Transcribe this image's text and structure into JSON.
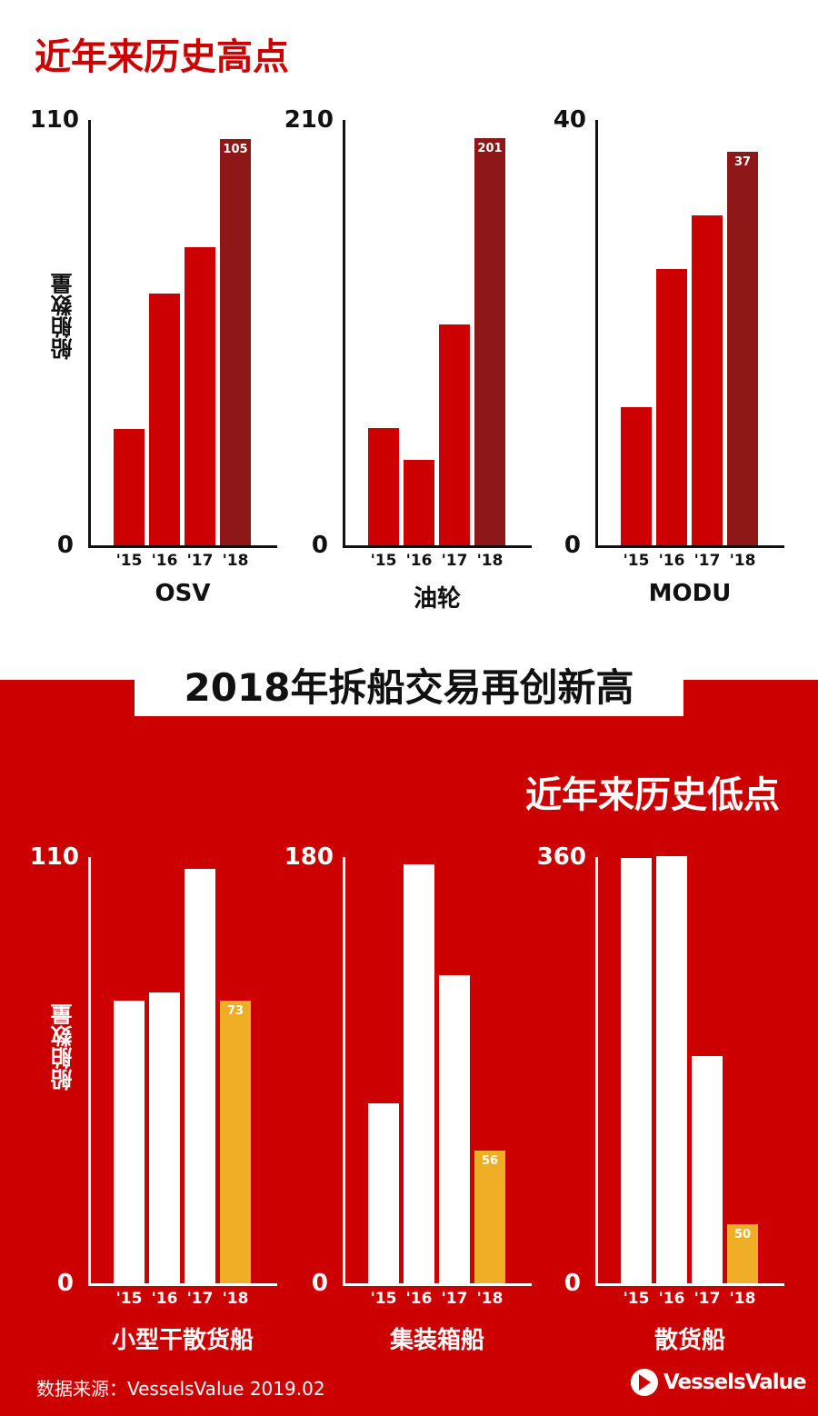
{
  "top_title": "近年来历史高点",
  "mid_title": "2018年拆船交易再创新高",
  "bottom_title": "近年来历史低点",
  "ylabel": "船舶数量",
  "source": "数据来源：VesselsValue 2019.02",
  "logo_text": "VesselsValue",
  "colors": {
    "red": "#cc0000",
    "dark_red": "#8e1717",
    "yellow": "#efae26",
    "white": "#ffffff"
  },
  "chart_data": [
    {
      "type": "bar",
      "xlabel": "OSV",
      "categories": [
        "'15",
        "'16",
        "'17",
        "'18"
      ],
      "values": [
        30,
        65,
        77,
        105
      ],
      "ylim": [
        0,
        110
      ],
      "yticks": [
        "0",
        "110"
      ],
      "data_label": "105",
      "highlight": "'18"
    },
    {
      "type": "bar",
      "xlabel": "油轮",
      "categories": [
        "'15",
        "'16",
        "'17",
        "'18"
      ],
      "values": [
        58,
        42,
        109,
        201
      ],
      "ylim": [
        0,
        210
      ],
      "yticks": [
        "0",
        "210"
      ],
      "data_label": "201",
      "highlight": "'18"
    },
    {
      "type": "bar",
      "xlabel": "MODU",
      "categories": [
        "'15",
        "'16",
        "'17",
        "'18"
      ],
      "values": [
        13,
        26,
        31,
        37
      ],
      "ylim": [
        0,
        40
      ],
      "yticks": [
        "0",
        "40"
      ],
      "data_label": "37",
      "highlight": "'18"
    },
    {
      "type": "bar",
      "xlabel": "小型干散货船",
      "categories": [
        "'15",
        "'16",
        "'17",
        "'18"
      ],
      "values": [
        73,
        75,
        107,
        73
      ],
      "ylim": [
        0,
        110
      ],
      "yticks": [
        "0",
        "110"
      ],
      "data_label": "73",
      "highlight": "'18"
    },
    {
      "type": "bar",
      "xlabel": "集装箱船",
      "categories": [
        "'15",
        "'16",
        "'17",
        "'18"
      ],
      "values": [
        76,
        177,
        130,
        56
      ],
      "ylim": [
        0,
        180
      ],
      "yticks": [
        "0",
        "180"
      ],
      "data_label": "56",
      "highlight": "'18"
    },
    {
      "type": "bar",
      "xlabel": "散货船",
      "categories": [
        "'15",
        "'16",
        "'17",
        "'18"
      ],
      "values": [
        359,
        361,
        192,
        50
      ],
      "ylim": [
        0,
        360
      ],
      "yticks": [
        "0",
        "360"
      ],
      "data_label": "50",
      "highlight": "'18"
    }
  ]
}
